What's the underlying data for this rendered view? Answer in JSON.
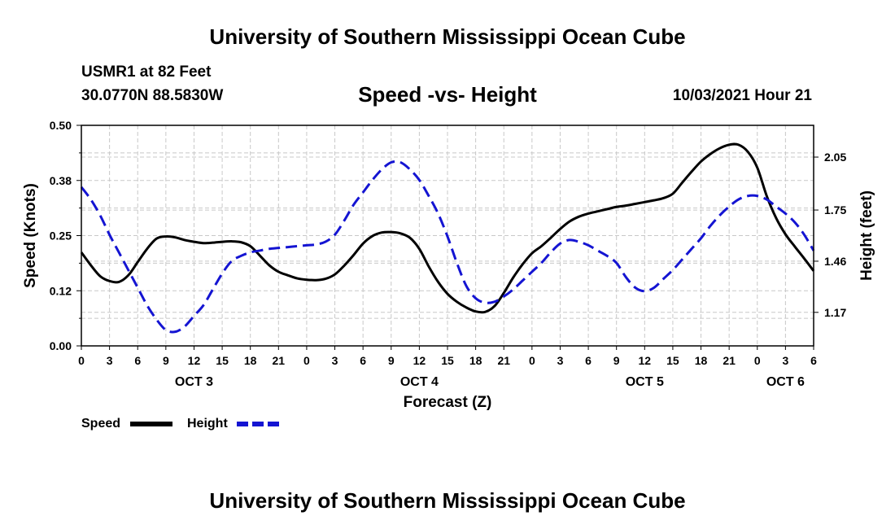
{
  "header": {
    "title": "University of Southern Mississippi Ocean Cube",
    "station": "USMR1 at 82 Feet",
    "coordinates": "30.0770N  88.5830W",
    "chart_title": "Speed -vs- Height",
    "timestamp": "10/03/2021 Hour 21"
  },
  "footer": {
    "title": "University of Southern Mississippi Ocean Cube"
  },
  "chart_data": {
    "type": "line",
    "title": "Speed -vs- Height",
    "xlabel": "Forecast (Z)",
    "ylabel": "Speed (Knots)",
    "y2label": "Height (feet)",
    "ylim": [
      0,
      0.5
    ],
    "y2lim": [
      0.98,
      2.23
    ],
    "y_ticks": [
      "0.00",
      "0.12",
      "0.25",
      "0.38",
      "0.50"
    ],
    "y_tick_values": [
      0,
      0.125,
      0.25,
      0.375,
      0.5
    ],
    "y2_ticks": [
      "1.17",
      "1.46",
      "1.75",
      "2.05"
    ],
    "y2_tick_values": [
      1.17,
      1.46,
      1.75,
      2.05
    ],
    "x_range_hours": [
      0,
      78
    ],
    "x_tick_labels": [
      "0",
      "3",
      "6",
      "9",
      "12",
      "15",
      "18",
      "21",
      "0",
      "3",
      "6",
      "9",
      "12",
      "15",
      "18",
      "21",
      "0",
      "3",
      "6",
      "9",
      "12",
      "15",
      "18",
      "21",
      "0",
      "3",
      "6"
    ],
    "day_labels": [
      {
        "label": "OCT 3",
        "hour": 12
      },
      {
        "label": "OCT 4",
        "hour": 36
      },
      {
        "label": "OCT 5",
        "hour": 60
      },
      {
        "label": "OCT 6",
        "hour": 75
      }
    ],
    "grid": true,
    "legend_position": "bottom-left",
    "series": [
      {
        "name": "Speed",
        "axis": "left",
        "color": "#000000",
        "style": "solid",
        "x": [
          0,
          1,
          2,
          3,
          4,
          5,
          6,
          7,
          8,
          9,
          10,
          11,
          12,
          13,
          14,
          15,
          16,
          17,
          18,
          19,
          20,
          21,
          22,
          23,
          24,
          25,
          26,
          27,
          28,
          29,
          30,
          31,
          32,
          33,
          34,
          35,
          36,
          37,
          38,
          39,
          40,
          41,
          42,
          43,
          44,
          45,
          46,
          47,
          48,
          49,
          50,
          51,
          52,
          53,
          54,
          55,
          56,
          57,
          58,
          59,
          60,
          61,
          62,
          63,
          64,
          65,
          66,
          67,
          68,
          69,
          70,
          71,
          72,
          73,
          74,
          75,
          76,
          77,
          78
        ],
        "values": [
          0.212,
          0.183,
          0.158,
          0.147,
          0.145,
          0.16,
          0.19,
          0.22,
          0.243,
          0.248,
          0.246,
          0.24,
          0.236,
          0.233,
          0.234,
          0.236,
          0.237,
          0.235,
          0.226,
          0.205,
          0.183,
          0.168,
          0.16,
          0.153,
          0.15,
          0.149,
          0.152,
          0.162,
          0.182,
          0.206,
          0.232,
          0.249,
          0.257,
          0.258,
          0.255,
          0.245,
          0.22,
          0.18,
          0.145,
          0.118,
          0.1,
          0.087,
          0.078,
          0.077,
          0.09,
          0.12,
          0.155,
          0.185,
          0.21,
          0.226,
          0.245,
          0.265,
          0.282,
          0.293,
          0.3,
          0.305,
          0.31,
          0.315,
          0.318,
          0.322,
          0.326,
          0.33,
          0.335,
          0.345,
          0.37,
          0.395,
          0.418,
          0.435,
          0.448,
          0.456,
          0.456,
          0.44,
          0.404,
          0.34,
          0.29,
          0.253,
          0.225,
          0.198,
          0.17
        ]
      },
      {
        "name": "Height",
        "axis": "right",
        "color": "#1414d2",
        "style": "dashed",
        "x": [
          0,
          1,
          2,
          3,
          4,
          5,
          6,
          7,
          8,
          9,
          10,
          11,
          12,
          13,
          14,
          15,
          16,
          17,
          18,
          19,
          20,
          21,
          22,
          23,
          24,
          25,
          26,
          27,
          28,
          29,
          30,
          31,
          32,
          33,
          34,
          35,
          36,
          37,
          38,
          39,
          40,
          41,
          42,
          43,
          44,
          45,
          46,
          47,
          48,
          49,
          50,
          51,
          52,
          53,
          54,
          55,
          56,
          57,
          58,
          59,
          60,
          61,
          62,
          63,
          64,
          65,
          66,
          67,
          68,
          69,
          70,
          71,
          72,
          73,
          74,
          75,
          76,
          77,
          78
        ],
        "values": [
          1.88,
          1.81,
          1.72,
          1.61,
          1.51,
          1.41,
          1.31,
          1.21,
          1.13,
          1.07,
          1.06,
          1.09,
          1.15,
          1.21,
          1.3,
          1.39,
          1.46,
          1.49,
          1.51,
          1.52,
          1.53,
          1.535,
          1.54,
          1.545,
          1.55,
          1.555,
          1.57,
          1.61,
          1.69,
          1.78,
          1.85,
          1.92,
          1.98,
          2.02,
          2.02,
          1.98,
          1.92,
          1.83,
          1.73,
          1.6,
          1.45,
          1.32,
          1.25,
          1.225,
          1.23,
          1.26,
          1.3,
          1.35,
          1.4,
          1.45,
          1.51,
          1.56,
          1.58,
          1.57,
          1.55,
          1.52,
          1.49,
          1.45,
          1.37,
          1.31,
          1.29,
          1.31,
          1.36,
          1.41,
          1.47,
          1.53,
          1.59,
          1.66,
          1.72,
          1.77,
          1.81,
          1.83,
          1.83,
          1.81,
          1.77,
          1.73,
          1.68,
          1.61,
          1.52
        ]
      }
    ]
  }
}
